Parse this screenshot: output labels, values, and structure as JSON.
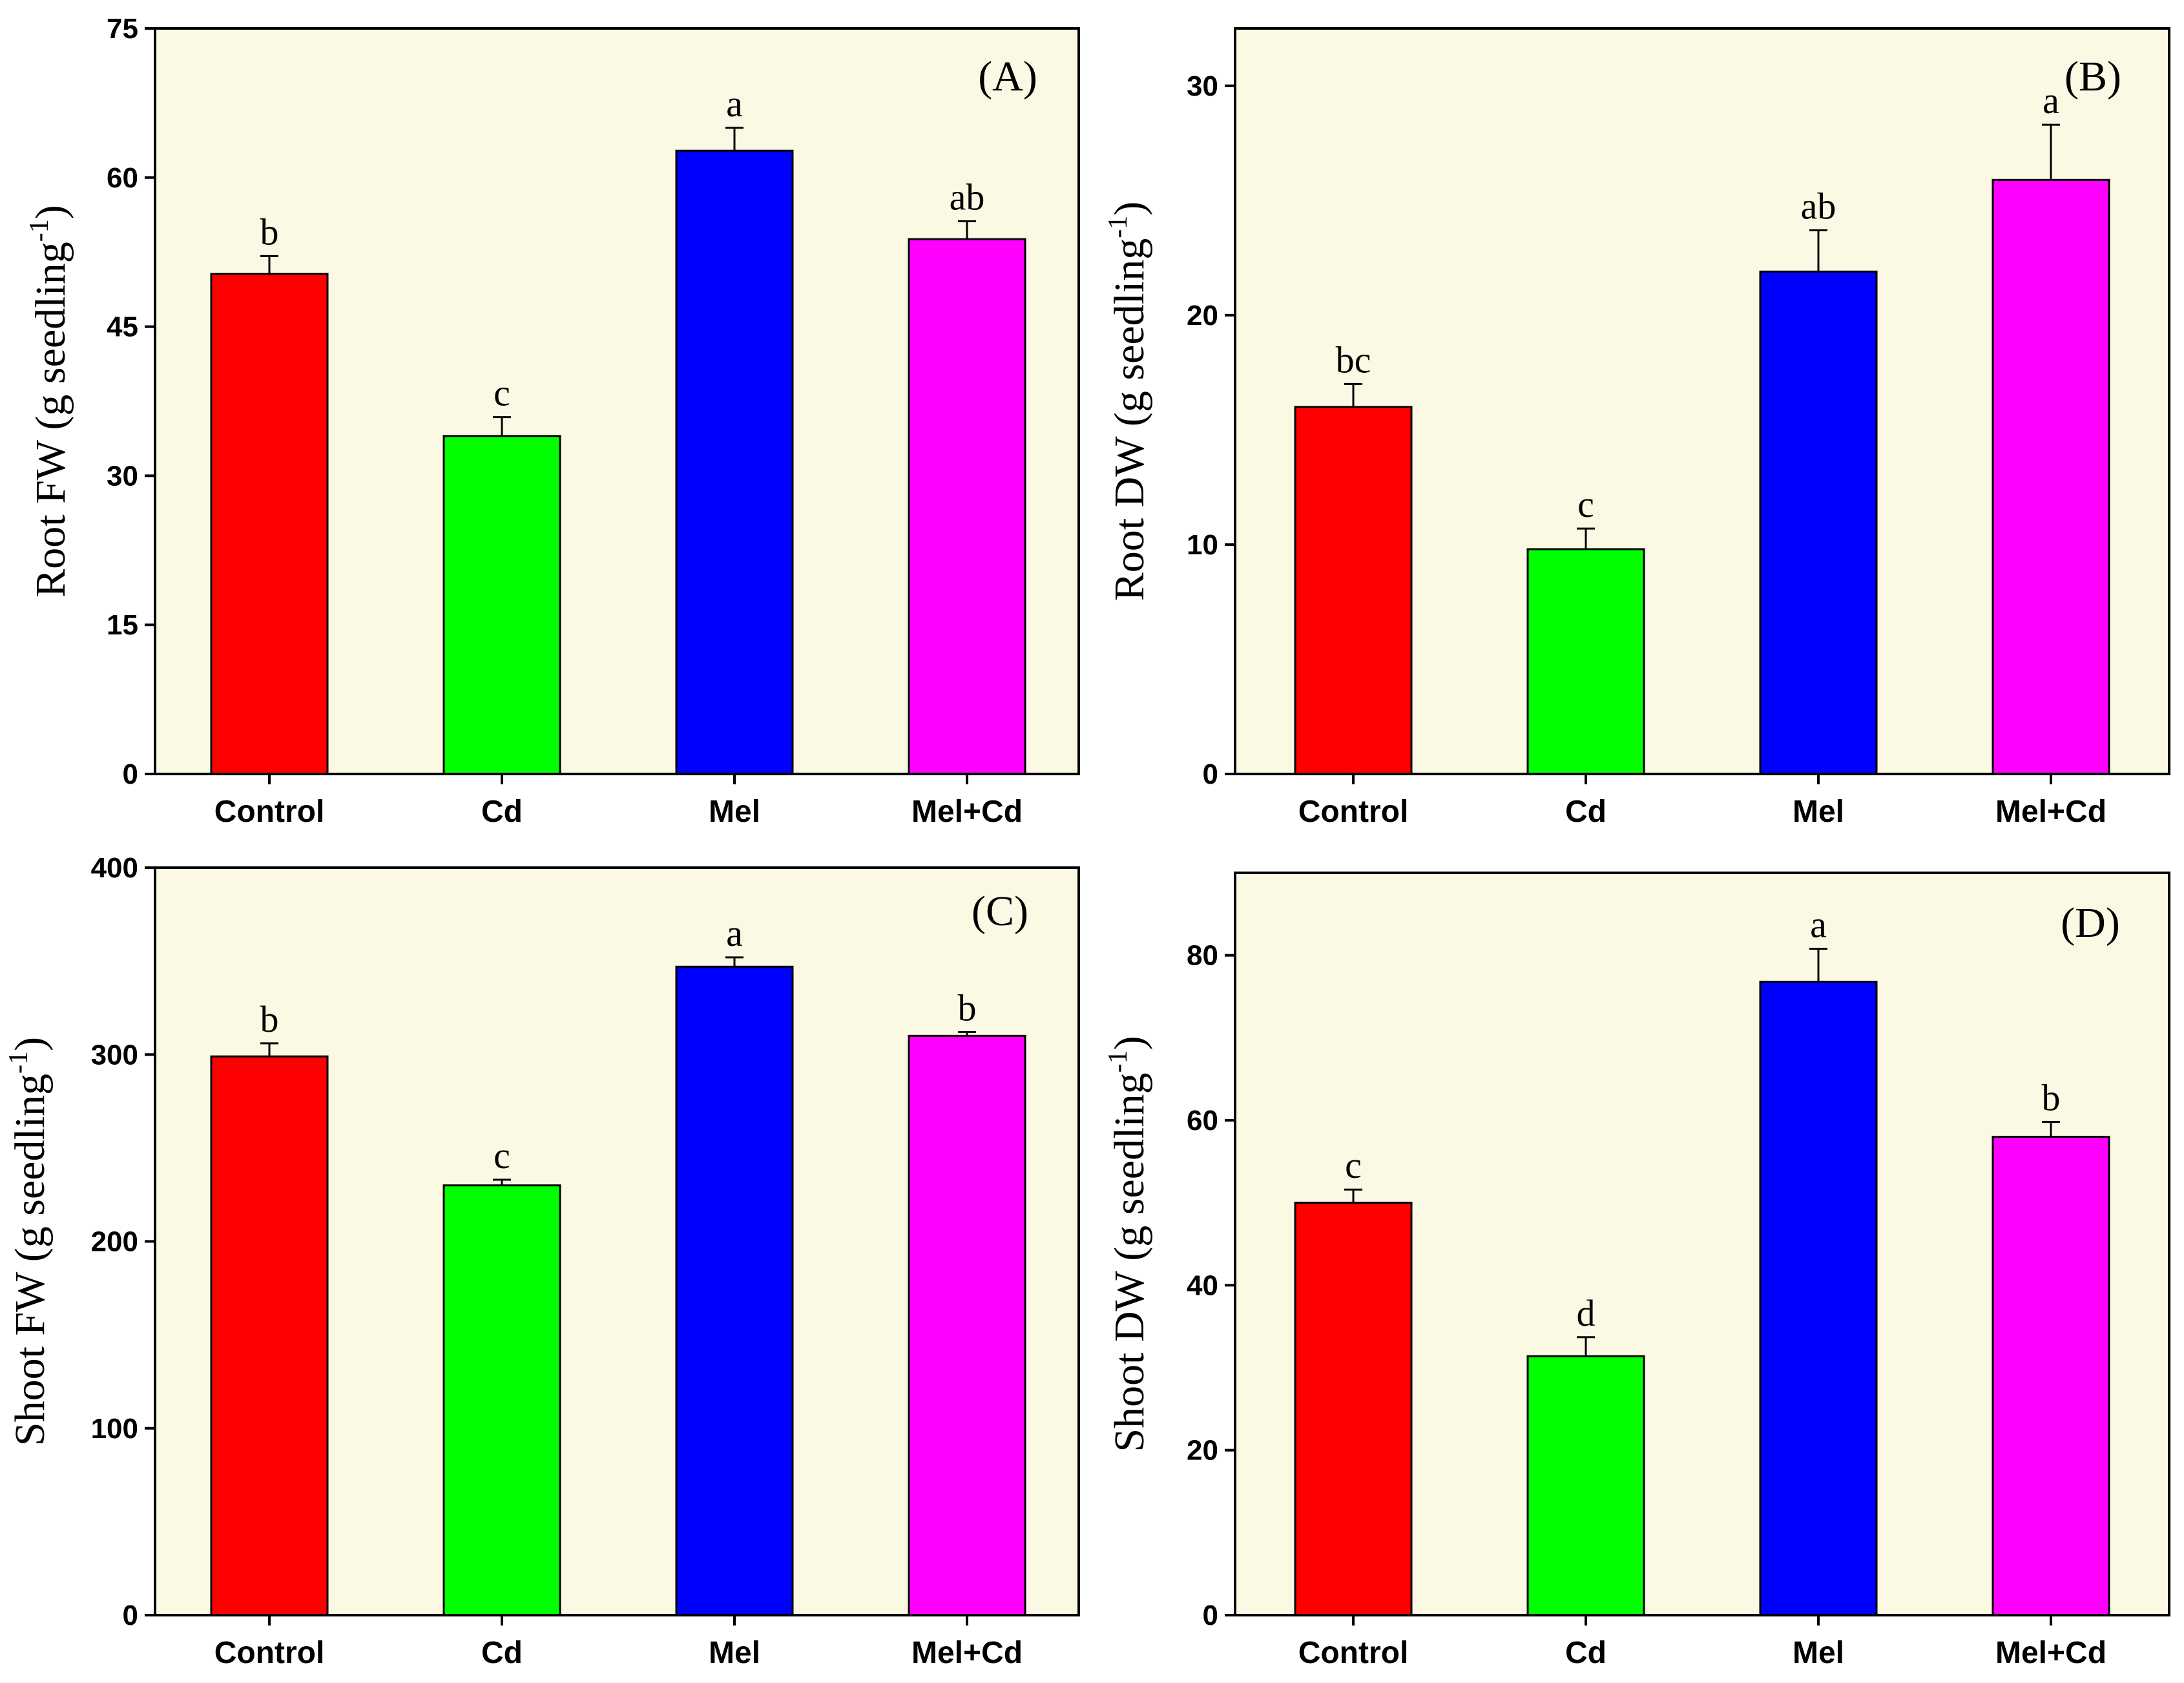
{
  "figure": {
    "plot_background": "#fbf8e3",
    "categories": [
      "Control",
      "Cd",
      "Mel",
      "Mel+Cd"
    ],
    "bar_colors": [
      "#ff0000",
      "#00ff00",
      "#0000ff",
      "#ff00ff"
    ]
  },
  "chart_data": [
    {
      "type": "bar",
      "panel": "(A)",
      "ylabel": "Root FW (g seedling",
      "ylabel_sup": "-1",
      "ylabel_close": ")",
      "categories": [
        "Control",
        "Cd",
        "Mel",
        "Mel+Cd"
      ],
      "values": [
        50.3,
        34.0,
        62.7,
        53.8
      ],
      "errors": [
        1.8,
        1.9,
        2.3,
        1.8
      ],
      "letters": [
        "b",
        "c",
        "a",
        "ab"
      ],
      "ylim": [
        0,
        75
      ],
      "yticks": [
        0,
        15,
        30,
        45,
        60,
        75
      ]
    },
    {
      "type": "bar",
      "panel": "(B)",
      "ylabel": "Root DW (g seedling",
      "ylabel_sup": "-1",
      "ylabel_close": ")",
      "categories": [
        "Control",
        "Cd",
        "Mel",
        "Mel+Cd"
      ],
      "values": [
        16.0,
        9.8,
        21.9,
        25.9
      ],
      "errors": [
        1.0,
        0.9,
        1.8,
        2.4
      ],
      "letters": [
        "bc",
        "c",
        "ab",
        "a"
      ],
      "ylim": [
        0,
        32.5
      ],
      "yticks": [
        0,
        10,
        20,
        30
      ]
    },
    {
      "type": "bar",
      "panel": "(C)",
      "ylabel": "Shoot FW (g seedling",
      "ylabel_sup": "-1",
      "ylabel_close": ")",
      "categories": [
        "Control",
        "Cd",
        "Mel",
        "Mel+Cd"
      ],
      "values": [
        299,
        230,
        347,
        310
      ],
      "errors": [
        7,
        3,
        5,
        2
      ],
      "letters": [
        "b",
        "c",
        "a",
        "b"
      ],
      "ylim": [
        0,
        400
      ],
      "yticks": [
        0,
        100,
        200,
        300,
        400
      ]
    },
    {
      "type": "bar",
      "panel": "(D)",
      "ylabel": "Shoot DW (g seedling",
      "ylabel_sup": "-1",
      "ylabel_close": ")",
      "categories": [
        "Control",
        "Cd",
        "Mel",
        "Mel+Cd"
      ],
      "values": [
        50.0,
        31.4,
        76.8,
        58.0
      ],
      "errors": [
        1.6,
        2.3,
        4.0,
        1.8
      ],
      "letters": [
        "c",
        "d",
        "a",
        "b"
      ],
      "ylim": [
        0,
        90
      ],
      "yticks": [
        0,
        20,
        40,
        60,
        80
      ]
    }
  ]
}
